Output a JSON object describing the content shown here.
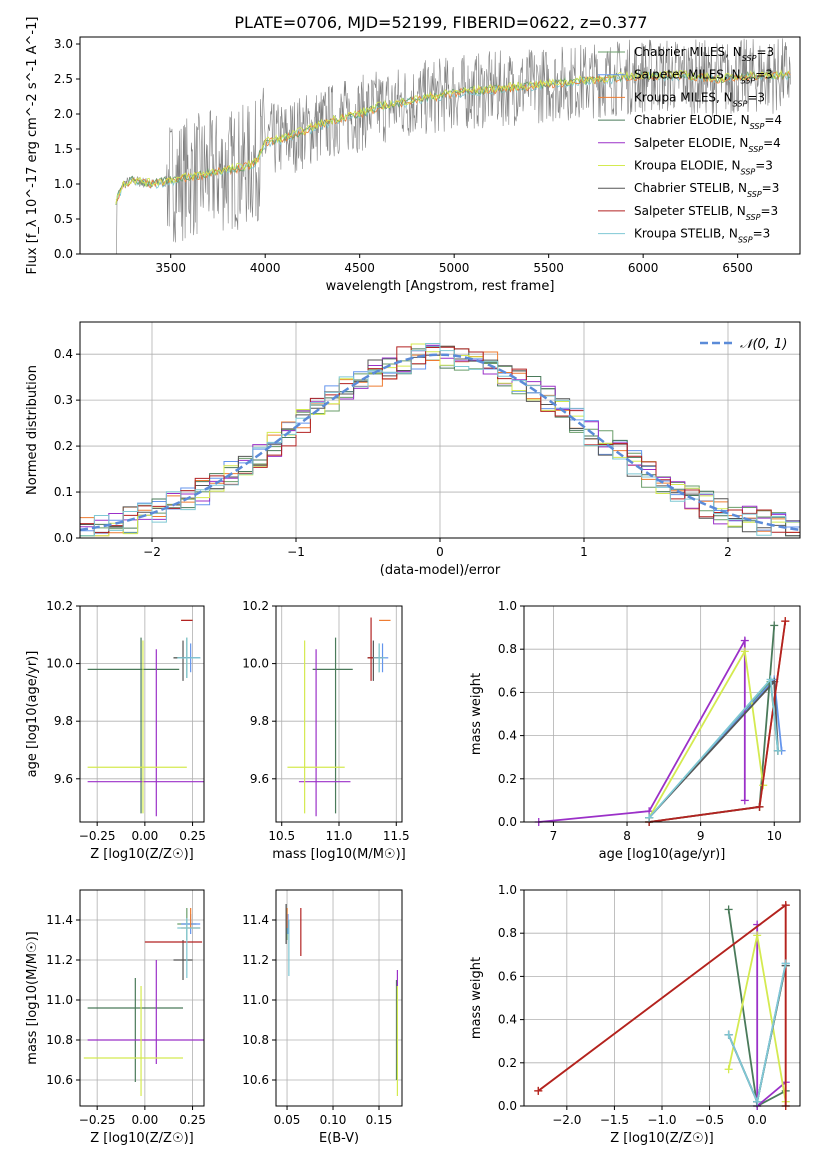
{
  "figure": {
    "title": "PLATE=0706, MJD=52199, FIBERID=0622, z=0.377"
  },
  "series": [
    {
      "name": "Chabrier MILES, N_SSP=3",
      "short": "Chabrier MILES",
      "nssp": "3",
      "color": "#6a9e6a"
    },
    {
      "name": "Salpeter MILES, N_SSP=3",
      "short": "Salpeter MILES",
      "nssp": "3",
      "color": "#6495ed"
    },
    {
      "name": "Kroupa MILES, N_SSP=3",
      "short": "Kroupa MILES",
      "nssp": "3",
      "color": "#ee7c32"
    },
    {
      "name": "Chabrier ELODIE, N_SSP=4",
      "short": "Chabrier ELODIE",
      "nssp": "4",
      "color": "#4a7a5a"
    },
    {
      "name": "Salpeter ELODIE, N_SSP=4",
      "short": "Salpeter ELODIE",
      "nssp": "4",
      "color": "#9b30c8"
    },
    {
      "name": "Kroupa ELODIE, N_SSP=3",
      "short": "Kroupa ELODIE",
      "nssp": "3",
      "color": "#d4ea50"
    },
    {
      "name": "Chabrier STELIB, N_SSP=3",
      "short": "Chabrier STELIB",
      "nssp": "3",
      "color": "#555555"
    },
    {
      "name": "Salpeter STELIB, N_SSP=3",
      "short": "Salpeter STELIB",
      "nssp": "3",
      "color": "#b22222"
    },
    {
      "name": "Kroupa STELIB, N_SSP=3",
      "short": "Kroupa STELIB",
      "nssp": "3",
      "color": "#7fc8d4"
    }
  ],
  "chart_data": [
    {
      "id": "spectrum",
      "type": "line",
      "xlabel": "wavelength [Angstrom, rest frame]",
      "ylabel": "Flux [f_λ 10^-17 erg cm^-2 s^-1 A^-1]",
      "xlim": [
        3020,
        6830
      ],
      "ylim": [
        0,
        3.1
      ],
      "xticks": [
        3500,
        4000,
        4500,
        5000,
        5500,
        6000,
        6500
      ],
      "yticks": [
        0.0,
        0.5,
        1.0,
        1.5,
        2.0,
        2.5,
        3.0
      ],
      "legend_loc": "right",
      "data_x_range": [
        3210,
        6780
      ],
      "continuum_shape": {
        "x": [
          3210,
          3250,
          3300,
          3400,
          3500,
          3600,
          3700,
          3800,
          3900,
          3950,
          4000,
          4100,
          4200,
          4300,
          4400,
          4500,
          4600,
          4700,
          4800,
          4900,
          5000,
          5200,
          5400,
          5600,
          5800,
          6000,
          6200,
          6400,
          6600,
          6780
        ],
        "y": [
          0.75,
          1.0,
          1.05,
          1.0,
          1.05,
          1.1,
          1.15,
          1.2,
          1.25,
          1.3,
          1.6,
          1.65,
          1.75,
          1.85,
          1.95,
          2.0,
          2.1,
          2.15,
          2.2,
          2.25,
          2.3,
          2.35,
          2.4,
          2.45,
          2.5,
          2.55,
          2.55,
          2.5,
          2.55,
          2.55
        ]
      }
    },
    {
      "id": "residuals",
      "type": "step",
      "xlabel": "(data-model)/error",
      "ylabel": "Normed distribution",
      "xlim": [
        -2.5,
        2.5
      ],
      "ylim": [
        0,
        0.47
      ],
      "xticks": [
        -2,
        -1,
        0,
        1,
        2
      ],
      "yticks": [
        0.0,
        0.1,
        0.2,
        0.3,
        0.4
      ],
      "grid": true,
      "legend_label": "N(0,1)",
      "gaussian": {
        "mean": 0,
        "sigma": 1
      },
      "bins": {
        "start": -2.5,
        "width": 0.1
      },
      "histogram": [
        0.03,
        0.02,
        0.03,
        0.04,
        0.05,
        0.06,
        0.07,
        0.09,
        0.08,
        0.1,
        0.08,
        0.1,
        0.13,
        0.12,
        0.16,
        0.19,
        0.2,
        0.23,
        0.24,
        0.22,
        0.28,
        0.3,
        0.28,
        0.34,
        0.33,
        0.31,
        0.36,
        0.38,
        0.4,
        0.37,
        0.36,
        0.4,
        0.39,
        0.4,
        0.38,
        0.37,
        0.36,
        0.35,
        0.33,
        0.32,
        0.3,
        0.29,
        0.28,
        0.24,
        0.22,
        0.2,
        0.18,
        0.17,
        0.15,
        0.13,
        0.11,
        0.12,
        0.1,
        0.09,
        0.08,
        0.07,
        0.06,
        0.05,
        0.05,
        0.04,
        0.04,
        0.03,
        0.03,
        0.04,
        0.04,
        0.04,
        0.03,
        0.03,
        0.03,
        0.03,
        0.03,
        0.02,
        0.02,
        0.02,
        0.02,
        0.02,
        0.02,
        0.02,
        0.02,
        0.02,
        0.02,
        0.02,
        0.02,
        0.02,
        0.02,
        0.02,
        0.02,
        0.02,
        0.02,
        0.02
      ]
    },
    {
      "id": "age_vs_Z",
      "type": "errorbar",
      "xlabel": "Z [log10(Z/Z☉)]",
      "ylabel": "age  [log10(age/yr)]",
      "xlim": [
        -0.34,
        0.31
      ],
      "ylim": [
        9.45,
        10.2
      ],
      "xticks": [
        -0.25,
        0.0,
        0.25
      ],
      "xticklabels": [
        "−0.25",
        "0.00",
        "0.25"
      ],
      "yticks": [
        9.6,
        9.8,
        10.0,
        10.2
      ],
      "yticklabels": [
        "9.6",
        "9.8",
        "10.0",
        "10.2"
      ],
      "grid": true,
      "points": [
        {
          "s": 0,
          "x": 0.22,
          "y": 10.02,
          "xerr": [
            0.07,
            0.07
          ],
          "yerr": [
            0.07,
            0.07
          ]
        },
        {
          "s": 1,
          "x": 0.24,
          "y": 10.02,
          "xerr": [
            0.05,
            0.05
          ],
          "yerr": [
            0.05,
            0.05
          ]
        },
        {
          "s": 2,
          "x": 0.25,
          "y": 10.15,
          "xerr": [
            0.06,
            0.0
          ],
          "yerr": [
            0.0,
            0.0
          ]
        },
        {
          "s": 3,
          "x": -0.02,
          "y": 9.98,
          "xerr": [
            0.28,
            0.2
          ],
          "yerr": [
            0.5,
            0.11
          ]
        },
        {
          "s": 4,
          "x": 0.06,
          "y": 9.59,
          "xerr": [
            0.36,
            0.25
          ],
          "yerr": [
            0.12,
            0.46
          ]
        },
        {
          "s": 5,
          "x": -0.01,
          "y": 9.64,
          "xerr": [
            0.29,
            0.23
          ],
          "yerr": [
            0.16,
            0.44
          ]
        },
        {
          "s": 6,
          "x": 0.2,
          "y": 10.02,
          "xerr": [
            0.05,
            0.04
          ],
          "yerr": [
            0.08,
            0.06
          ]
        },
        {
          "s": 7,
          "x": 0.25,
          "y": 10.15,
          "xerr": [
            0.06,
            0.0
          ],
          "yerr": [
            0.0,
            0.0
          ]
        },
        {
          "s": 8,
          "x": 0.22,
          "y": 10.02,
          "xerr": [
            0.05,
            0.07
          ],
          "yerr": [
            0.07,
            0.07
          ]
        }
      ]
    },
    {
      "id": "age_vs_mass",
      "type": "errorbar",
      "xlabel": "mass [log10(M/M☉)]",
      "ylabel": "",
      "xlim": [
        10.45,
        11.55
      ],
      "ylim": [
        9.45,
        10.2
      ],
      "xticks": [
        10.5,
        11.0,
        11.5
      ],
      "xticklabels": [
        "10.5",
        "11.0",
        "11.5"
      ],
      "yticks": [
        9.6,
        9.8,
        10.0,
        10.2
      ],
      "yticklabels": [
        "9.6",
        "9.8",
        "10.0",
        "10.2"
      ],
      "grid": true,
      "points": [
        {
          "s": 0,
          "x": 11.35,
          "y": 10.02,
          "xerr": [
            0.1,
            0.05
          ],
          "yerr": [
            0.05,
            0.05
          ]
        },
        {
          "s": 1,
          "x": 11.38,
          "y": 10.02,
          "xerr": [
            0.05,
            0.05
          ],
          "yerr": [
            0.05,
            0.05
          ]
        },
        {
          "s": 2,
          "x": 11.4,
          "y": 10.15,
          "xerr": [
            0.05,
            0.05
          ],
          "yerr": [
            0.0,
            0.0
          ]
        },
        {
          "s": 3,
          "x": 10.97,
          "y": 9.98,
          "xerr": [
            0.2,
            0.15
          ],
          "yerr": [
            0.5,
            0.11
          ]
        },
        {
          "s": 4,
          "x": 10.8,
          "y": 9.59,
          "xerr": [
            0.15,
            0.3
          ],
          "yerr": [
            0.12,
            0.46
          ]
        },
        {
          "s": 5,
          "x": 10.7,
          "y": 9.64,
          "xerr": [
            0.15,
            0.35
          ],
          "yerr": [
            0.16,
            0.44
          ]
        },
        {
          "s": 6,
          "x": 11.3,
          "y": 10.02,
          "xerr": [
            0.05,
            0.05
          ],
          "yerr": [
            0.08,
            0.06
          ]
        },
        {
          "s": 7,
          "x": 11.28,
          "y": 10.02,
          "xerr": [
            0.03,
            0.1
          ],
          "yerr": [
            0.08,
            0.14
          ]
        },
        {
          "s": 8,
          "x": 11.35,
          "y": 10.02,
          "xerr": [
            0.05,
            0.05
          ],
          "yerr": [
            0.05,
            0.05
          ]
        }
      ]
    },
    {
      "id": "mass_weight_vs_age",
      "type": "line",
      "xlabel": "age  [log10(age/yr)]",
      "ylabel": "mass weight",
      "xlim": [
        6.6,
        10.35
      ],
      "ylim": [
        0,
        1.0
      ],
      "xticks": [
        7,
        8,
        9,
        10
      ],
      "yticks": [
        0.0,
        0.2,
        0.4,
        0.6,
        0.8,
        1.0
      ],
      "grid": true,
      "lines": [
        {
          "s": 0,
          "x": [
            8.3,
            9.95,
            10.05
          ],
          "y": [
            0.02,
            0.65,
            0.33
          ]
        },
        {
          "s": 1,
          "x": [
            8.3,
            10.0,
            10.1
          ],
          "y": [
            0.02,
            0.66,
            0.33
          ]
        },
        {
          "s": 2,
          "x": [
            8.3,
            9.8,
            10.15
          ],
          "y": [
            0.0,
            0.07,
            0.93
          ]
        },
        {
          "s": 3,
          "x": [
            8.3,
            9.8,
            10.0
          ],
          "y": [
            0.0,
            0.07,
            0.91
          ]
        },
        {
          "s": 4,
          "x": [
            6.8,
            8.3,
            9.6,
            9.6
          ],
          "y": [
            0.0,
            0.05,
            0.84,
            0.1
          ]
        },
        {
          "s": 5,
          "x": [
            8.3,
            9.6,
            9.85
          ],
          "y": [
            0.02,
            0.79,
            0.17
          ]
        },
        {
          "s": 6,
          "x": [
            8.3,
            10.0,
            10.05
          ],
          "y": [
            0.02,
            0.65,
            0.33
          ]
        },
        {
          "s": 7,
          "x": [
            8.3,
            9.8,
            10.15
          ],
          "y": [
            0.0,
            0.07,
            0.93
          ]
        },
        {
          "s": 8,
          "x": [
            8.3,
            9.95,
            10.05
          ],
          "y": [
            0.02,
            0.66,
            0.33
          ]
        }
      ]
    },
    {
      "id": "mass_vs_Z",
      "type": "errorbar",
      "xlabel": "Z [log10(Z/Z☉)]",
      "ylabel": "mass [log10(M/M☉)]",
      "xlim": [
        -0.34,
        0.31
      ],
      "ylim": [
        10.47,
        11.55
      ],
      "xticks": [
        -0.25,
        0.0,
        0.25
      ],
      "xticklabels": [
        "−0.25",
        "0.00",
        "0.25"
      ],
      "yticks": [
        10.6,
        10.8,
        11.0,
        11.2,
        11.4
      ],
      "yticklabels": [
        "10.6",
        "10.8",
        "11.0",
        "11.2",
        "11.4"
      ],
      "grid": true,
      "points": [
        {
          "s": 0,
          "x": 0.22,
          "y": 11.38,
          "xerr": [
            0.05,
            0.05
          ],
          "yerr": [
            0.08,
            0.08
          ]
        },
        {
          "s": 1,
          "x": 0.24,
          "y": 11.38,
          "xerr": [
            0.05,
            0.05
          ],
          "yerr": [
            0.05,
            0.05
          ]
        },
        {
          "s": 2,
          "x": 0.24,
          "y": 11.36,
          "xerr": [
            0.05,
            0.05
          ],
          "yerr": [
            0.0,
            0.1
          ]
        },
        {
          "s": 3,
          "x": -0.05,
          "y": 10.96,
          "xerr": [
            0.25,
            0.25
          ],
          "yerr": [
            0.37,
            0.15
          ]
        },
        {
          "s": 4,
          "x": 0.06,
          "y": 10.8,
          "xerr": [
            0.36,
            0.25
          ],
          "yerr": [
            0.12,
            0.4
          ]
        },
        {
          "s": 5,
          "x": -0.02,
          "y": 10.71,
          "xerr": [
            0.3,
            0.22
          ],
          "yerr": [
            0.19,
            0.36
          ]
        },
        {
          "s": 6,
          "x": 0.2,
          "y": 11.2,
          "xerr": [
            0.05,
            0.05
          ],
          "yerr": [
            0.1,
            0.1
          ]
        },
        {
          "s": 7,
          "x": 0.1,
          "y": 11.29,
          "xerr": [
            0.1,
            0.2
          ],
          "yerr": [
            0.0,
            0.0
          ]
        },
        {
          "s": 8,
          "x": 0.22,
          "y": 11.36,
          "xerr": [
            0.05,
            0.07
          ],
          "yerr": [
            0.25,
            0.05
          ]
        }
      ]
    },
    {
      "id": "mass_vs_EBV",
      "type": "errorbar",
      "xlabel": "E(B-V)",
      "ylabel": "",
      "xlim": [
        0.038,
        0.175
      ],
      "ylim": [
        10.47,
        11.55
      ],
      "xticks": [
        0.05,
        0.1,
        0.15
      ],
      "xticklabels": [
        "0.05",
        "0.10",
        "0.15"
      ],
      "yticks": [
        10.6,
        10.8,
        11.0,
        11.2,
        11.4
      ],
      "yticklabels": [
        "10.6",
        "10.8",
        "11.0",
        "11.2",
        "11.4"
      ],
      "grid": true,
      "points": [
        {
          "s": 0,
          "x": 0.05,
          "y": 11.38,
          "xerr": [
            0,
            0
          ],
          "yerr": [
            0.08,
            0.08
          ]
        },
        {
          "s": 1,
          "x": 0.051,
          "y": 11.38,
          "xerr": [
            0,
            0
          ],
          "yerr": [
            0.05,
            0.05
          ]
        },
        {
          "s": 2,
          "x": 0.05,
          "y": 11.36,
          "xerr": [
            0,
            0
          ],
          "yerr": [
            0.0,
            0.1
          ]
        },
        {
          "s": 3,
          "x": 0.169,
          "y": 10.8,
          "xerr": [
            0,
            0
          ],
          "yerr": [
            0.2,
            0.3
          ]
        },
        {
          "s": 4,
          "x": 0.17,
          "y": 10.8,
          "xerr": [
            0,
            0
          ],
          "yerr": [
            0.12,
            0.35
          ]
        },
        {
          "s": 5,
          "x": 0.17,
          "y": 10.71,
          "xerr": [
            0,
            0
          ],
          "yerr": [
            0.19,
            0.36
          ]
        },
        {
          "s": 6,
          "x": 0.049,
          "y": 11.38,
          "xerr": [
            0,
            0
          ],
          "yerr": [
            0.1,
            0.1
          ]
        },
        {
          "s": 7,
          "x": 0.065,
          "y": 11.29,
          "xerr": [
            0,
            0
          ],
          "yerr": [
            0.07,
            0.17
          ]
        },
        {
          "s": 8,
          "x": 0.052,
          "y": 11.3,
          "xerr": [
            0,
            0
          ],
          "yerr": [
            0.18,
            0.1
          ]
        }
      ]
    },
    {
      "id": "mass_weight_vs_Z",
      "type": "line",
      "xlabel": "Z [log10(Z/Z☉)]",
      "ylabel": "mass weight",
      "xlim": [
        -2.45,
        0.45
      ],
      "ylim": [
        0,
        1.0
      ],
      "xticks": [
        -2.0,
        -1.5,
        -1.0,
        -0.5,
        0.0
      ],
      "xticklabels": [
        "−2.0",
        "−1.5",
        "−1.0",
        "−0.5",
        "0.0"
      ],
      "yticks": [
        0.0,
        0.2,
        0.4,
        0.6,
        0.8,
        1.0
      ],
      "grid": true,
      "lines": [
        {
          "s": 0,
          "x": [
            -0.3,
            0.0,
            0.3
          ],
          "y": [
            0.33,
            0.02,
            0.65
          ]
        },
        {
          "s": 1,
          "x": [
            -0.3,
            0.0,
            0.3
          ],
          "y": [
            0.33,
            0.02,
            0.66
          ]
        },
        {
          "s": 2,
          "x": [
            -2.3,
            0.3,
            0.3
          ],
          "y": [
            0.07,
            0.93,
            0.0
          ]
        },
        {
          "s": 3,
          "x": [
            -0.3,
            0.0,
            0.3
          ],
          "y": [
            0.91,
            0.0,
            0.07
          ]
        },
        {
          "s": 4,
          "x": [
            0.0,
            0.0,
            0.3
          ],
          "y": [
            0.84,
            0.0,
            0.11
          ]
        },
        {
          "s": 5,
          "x": [
            -0.3,
            0.0,
            0.3
          ],
          "y": [
            0.17,
            0.79,
            0.02
          ]
        },
        {
          "s": 6,
          "x": [
            -0.3,
            0.0,
            0.3
          ],
          "y": [
            0.33,
            0.02,
            0.65
          ]
        },
        {
          "s": 7,
          "x": [
            -2.3,
            0.3,
            0.3
          ],
          "y": [
            0.07,
            0.93,
            0.0
          ]
        },
        {
          "s": 8,
          "x": [
            -0.3,
            0.0,
            0.3
          ],
          "y": [
            0.33,
            0.02,
            0.66
          ]
        }
      ]
    }
  ]
}
